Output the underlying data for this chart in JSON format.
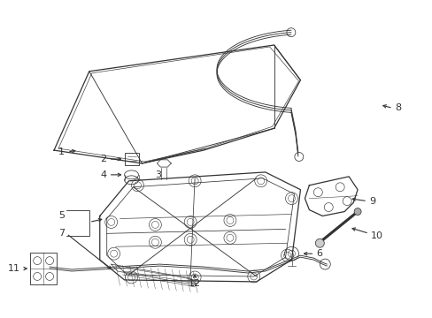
{
  "background_color": "#ffffff",
  "figsize": [
    4.89,
    3.6
  ],
  "dpi": 100,
  "line_color": "#333333",
  "lw": 0.9
}
